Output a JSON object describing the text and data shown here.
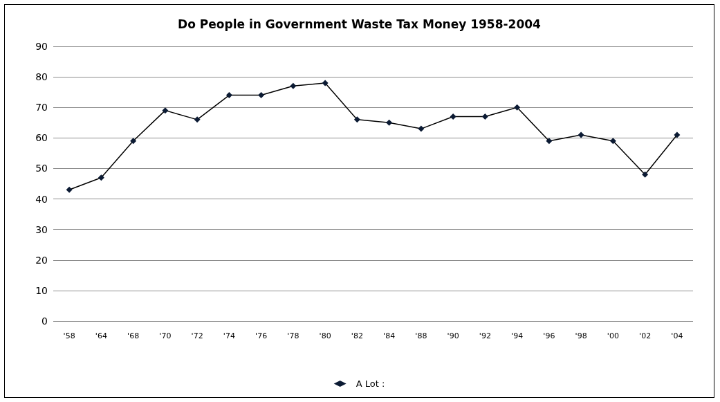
{
  "chart_data": {
    "type": "line",
    "title": "Do People in Government Waste Tax Money 1958-2004",
    "categories": [
      "'58",
      "'64",
      "'68",
      "'70",
      "'72",
      "'74",
      "'76",
      "'78",
      "'80",
      "'82",
      "'84",
      "'88",
      "'90",
      "'92",
      "'94",
      "'96",
      "'98",
      "'00",
      "'02",
      "'04"
    ],
    "series": [
      {
        "name": "A Lot :",
        "color": "#000000",
        "values": [
          43,
          47,
          59,
          69,
          66,
          74,
          74,
          77,
          78,
          66,
          65,
          63,
          67,
          67,
          70,
          59,
          61,
          59,
          48,
          61
        ]
      }
    ],
    "ylim": [
      0,
      90
    ],
    "yticks": [
      0,
      10,
      20,
      30,
      40,
      50,
      60,
      70,
      80,
      90
    ],
    "grid": "y",
    "legend": "bottom",
    "marker": "diamond",
    "line_style": "solid"
  }
}
